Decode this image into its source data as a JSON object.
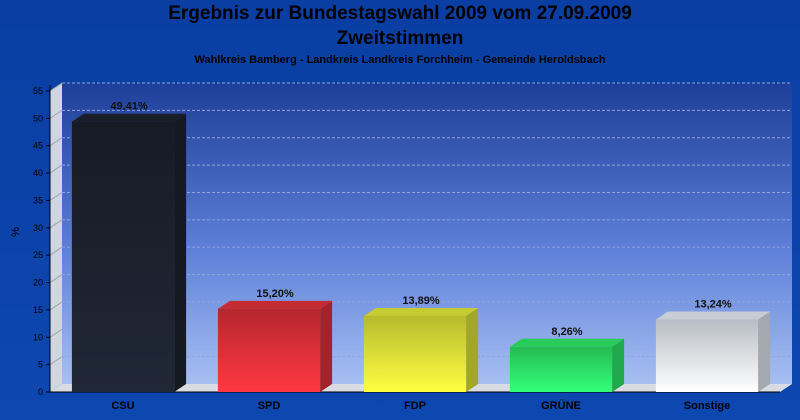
{
  "header": {
    "title": "Ergebnis zur Bundestagswahl 2009 vom 27.09.2009",
    "title2": "Zweitstimmen",
    "subtitle": "Wahlkreis Bamberg - Landkreis Landkreis Forchheim - Gemeinde Heroldsbach"
  },
  "chart_data": {
    "type": "bar",
    "title": "Ergebnis zur Bundestagswahl 2009 vom 27.09.2009",
    "subtitle": "Zweitstimmen",
    "ylabel": "%",
    "ylim": [
      0,
      55
    ],
    "yticks": [
      0,
      5,
      10,
      15,
      20,
      25,
      30,
      35,
      40,
      45,
      50,
      55
    ],
    "grid": true,
    "categories": [
      "CSU",
      "SPD",
      "FDP",
      "GRÜNE",
      "Sonstige"
    ],
    "values": [
      49.41,
      15.2,
      13.89,
      8.26,
      13.24
    ],
    "value_labels": [
      "49,41%",
      "15,20%",
      "13,89%",
      "8,26%",
      "13,24%"
    ],
    "colors": [
      "#1d2330",
      "#e8323c",
      "#e9ef3a",
      "#2ef06b",
      "#eaf1fb"
    ]
  }
}
